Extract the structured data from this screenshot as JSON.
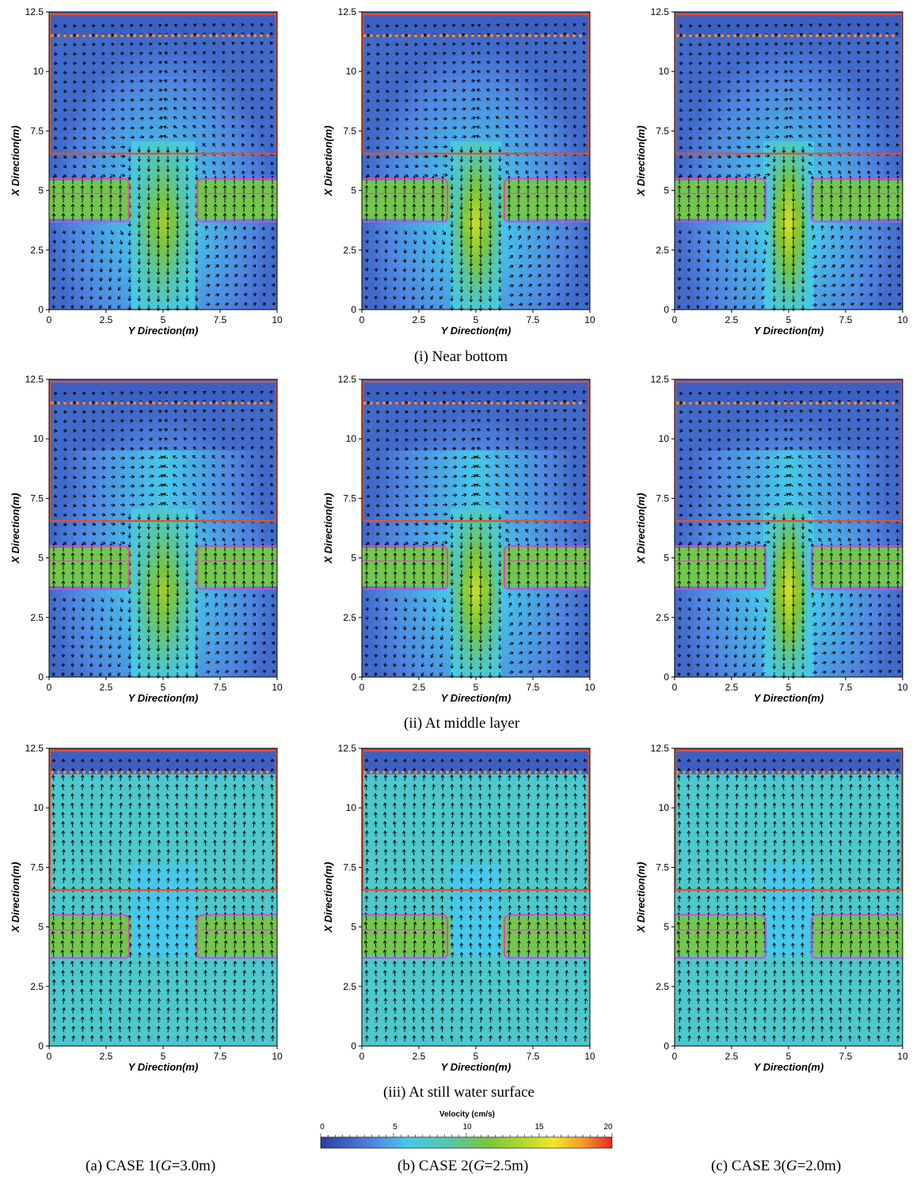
{
  "chart_data": {
    "type": "heatmap",
    "x_label": "Y Direction(m)",
    "y_label": "X Direction(m)",
    "xlim": [
      0,
      10
    ],
    "ylim": [
      0,
      12.5
    ],
    "x_ticks": [
      "0",
      "2.5",
      "5",
      "7.5",
      "10"
    ],
    "y_ticks": [
      "0",
      "2.5",
      "5",
      "7.5",
      "10",
      "12.5"
    ],
    "overlay": "velocity vectors",
    "colorbar": {
      "title": "Velocity (cm/s)",
      "min": 0,
      "max": 20,
      "ticks": [
        "0",
        "5",
        "10",
        "15",
        "20"
      ],
      "colors": [
        "#2b3fa6",
        "#4f86e0",
        "#46c8ea",
        "#58c7a0",
        "#7ac63a",
        "#b5d92e",
        "#f2e62a",
        "#f69a2b",
        "#e62a24"
      ]
    },
    "reference_lines": {
      "solid_top_x": 12.4,
      "dotted_x": 11.5,
      "solid_mid_x": 6.55,
      "structure_x_range": [
        3.7,
        5.5
      ]
    },
    "rows": [
      {
        "caption": "(i) Near bottom"
      },
      {
        "caption": "(ii) At middle layer"
      },
      {
        "caption": "(iii) At still water surface"
      }
    ],
    "columns": [
      {
        "caption_prefix": "(a) CASE 1(",
        "g": "G",
        "caption_suffix": "=3.0m)",
        "gap_m": 3.0
      },
      {
        "caption_prefix": "(b) CASE 2(",
        "g": "G",
        "caption_suffix": "=2.5m)",
        "gap_m": 2.5
      },
      {
        "caption_prefix": "(c) CASE 3(",
        "g": "G",
        "caption_suffix": "=2.0m)",
        "gap_m": 2.0
      }
    ],
    "panels": [
      {
        "row": 0,
        "col": 0,
        "peak_velocity": 12
      },
      {
        "row": 0,
        "col": 1,
        "peak_velocity": 14
      },
      {
        "row": 0,
        "col": 2,
        "peak_velocity": 15
      },
      {
        "row": 1,
        "col": 0,
        "peak_velocity": 12
      },
      {
        "row": 1,
        "col": 1,
        "peak_velocity": 14
      },
      {
        "row": 1,
        "col": 2,
        "peak_velocity": 15
      },
      {
        "row": 2,
        "col": 0,
        "peak_velocity": 10
      },
      {
        "row": 2,
        "col": 1,
        "peak_velocity": 10
      },
      {
        "row": 2,
        "col": 2,
        "peak_velocity": 10
      }
    ]
  }
}
